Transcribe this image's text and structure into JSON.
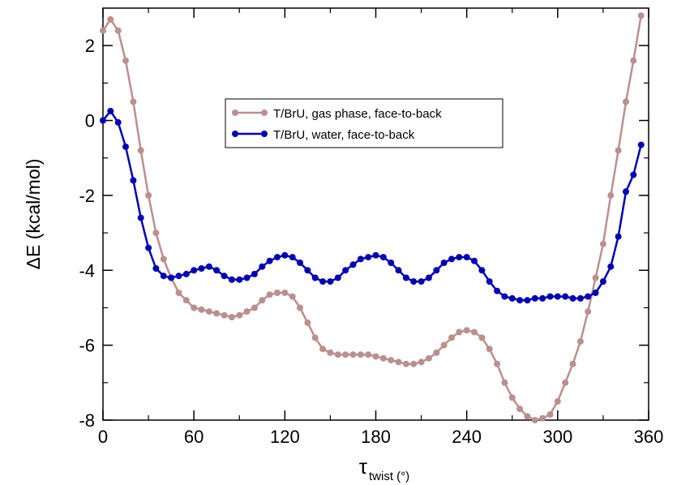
{
  "chart_data": {
    "type": "line",
    "xlabel": "τ",
    "xlabel_sub": "twist (°)",
    "ylabel": "ΔE (kcal/mol)",
    "xlim": [
      0,
      360
    ],
    "ylim": [
      -8,
      3
    ],
    "xticks": [
      0,
      60,
      120,
      180,
      240,
      300,
      360
    ],
    "yticks": [
      -8,
      -6,
      -4,
      -2,
      0,
      2
    ],
    "grid": false,
    "legend_position": "top-center",
    "series": [
      {
        "name": "T/BrU, gas phase, face-to-back",
        "color": "#bc8f8f",
        "x": [
          0,
          5,
          10,
          15,
          20,
          25,
          30,
          35,
          40,
          45,
          50,
          55,
          60,
          65,
          70,
          75,
          80,
          85,
          90,
          95,
          100,
          105,
          110,
          115,
          120,
          125,
          130,
          135,
          140,
          145,
          150,
          155,
          160,
          165,
          170,
          175,
          180,
          185,
          190,
          195,
          200,
          205,
          210,
          215,
          220,
          225,
          230,
          235,
          240,
          245,
          250,
          255,
          260,
          265,
          270,
          275,
          280,
          285,
          290,
          295,
          300,
          305,
          310,
          315,
          320,
          325,
          330,
          335,
          340,
          345,
          350,
          355
        ],
        "y": [
          2.4,
          2.7,
          2.4,
          1.6,
          0.5,
          -0.8,
          -2.0,
          -3.0,
          -3.7,
          -4.2,
          -4.6,
          -4.8,
          -5.0,
          -5.05,
          -5.1,
          -5.15,
          -5.2,
          -5.25,
          -5.2,
          -5.1,
          -5.0,
          -4.8,
          -4.65,
          -4.6,
          -4.6,
          -4.7,
          -5.0,
          -5.4,
          -5.8,
          -6.1,
          -6.2,
          -6.25,
          -6.25,
          -6.25,
          -6.25,
          -6.25,
          -6.3,
          -6.35,
          -6.4,
          -6.45,
          -6.5,
          -6.5,
          -6.45,
          -6.35,
          -6.2,
          -6.0,
          -5.8,
          -5.65,
          -5.6,
          -5.65,
          -5.8,
          -6.1,
          -6.5,
          -7.0,
          -7.4,
          -7.7,
          -7.9,
          -8.0,
          -7.95,
          -7.85,
          -7.5,
          -7.0,
          -6.5,
          -5.9,
          -5.1,
          -4.2,
          -3.3,
          -2.0,
          -0.8,
          0.5,
          1.6,
          2.8
        ]
      },
      {
        "name": "T/BrU, water, face-to-back",
        "color": "#0000b4",
        "x": [
          0,
          5,
          10,
          15,
          20,
          25,
          30,
          35,
          40,
          45,
          50,
          55,
          60,
          65,
          70,
          75,
          80,
          85,
          90,
          95,
          100,
          105,
          110,
          115,
          120,
          125,
          130,
          135,
          140,
          145,
          150,
          155,
          160,
          165,
          170,
          175,
          180,
          185,
          190,
          195,
          200,
          205,
          210,
          215,
          220,
          225,
          230,
          235,
          240,
          245,
          250,
          255,
          260,
          265,
          270,
          275,
          280,
          285,
          290,
          295,
          300,
          305,
          310,
          315,
          320,
          325,
          330,
          335,
          340,
          345,
          350,
          355
        ],
        "y": [
          0.0,
          0.25,
          -0.05,
          -0.7,
          -1.6,
          -2.6,
          -3.4,
          -3.95,
          -4.15,
          -4.2,
          -4.15,
          -4.1,
          -4.0,
          -3.95,
          -3.9,
          -4.0,
          -4.15,
          -4.25,
          -4.25,
          -4.2,
          -4.1,
          -3.9,
          -3.75,
          -3.65,
          -3.6,
          -3.65,
          -3.8,
          -4.0,
          -4.2,
          -4.3,
          -4.3,
          -4.2,
          -4.0,
          -3.85,
          -3.7,
          -3.65,
          -3.6,
          -3.65,
          -3.8,
          -4.0,
          -4.2,
          -4.3,
          -4.3,
          -4.2,
          -4.0,
          -3.8,
          -3.7,
          -3.65,
          -3.65,
          -3.75,
          -4.0,
          -4.3,
          -4.55,
          -4.7,
          -4.75,
          -4.8,
          -4.8,
          -4.75,
          -4.75,
          -4.7,
          -4.7,
          -4.7,
          -4.75,
          -4.75,
          -4.7,
          -4.6,
          -4.3,
          -3.9,
          -3.1,
          -1.9,
          -1.45,
          -0.65
        ]
      }
    ]
  }
}
